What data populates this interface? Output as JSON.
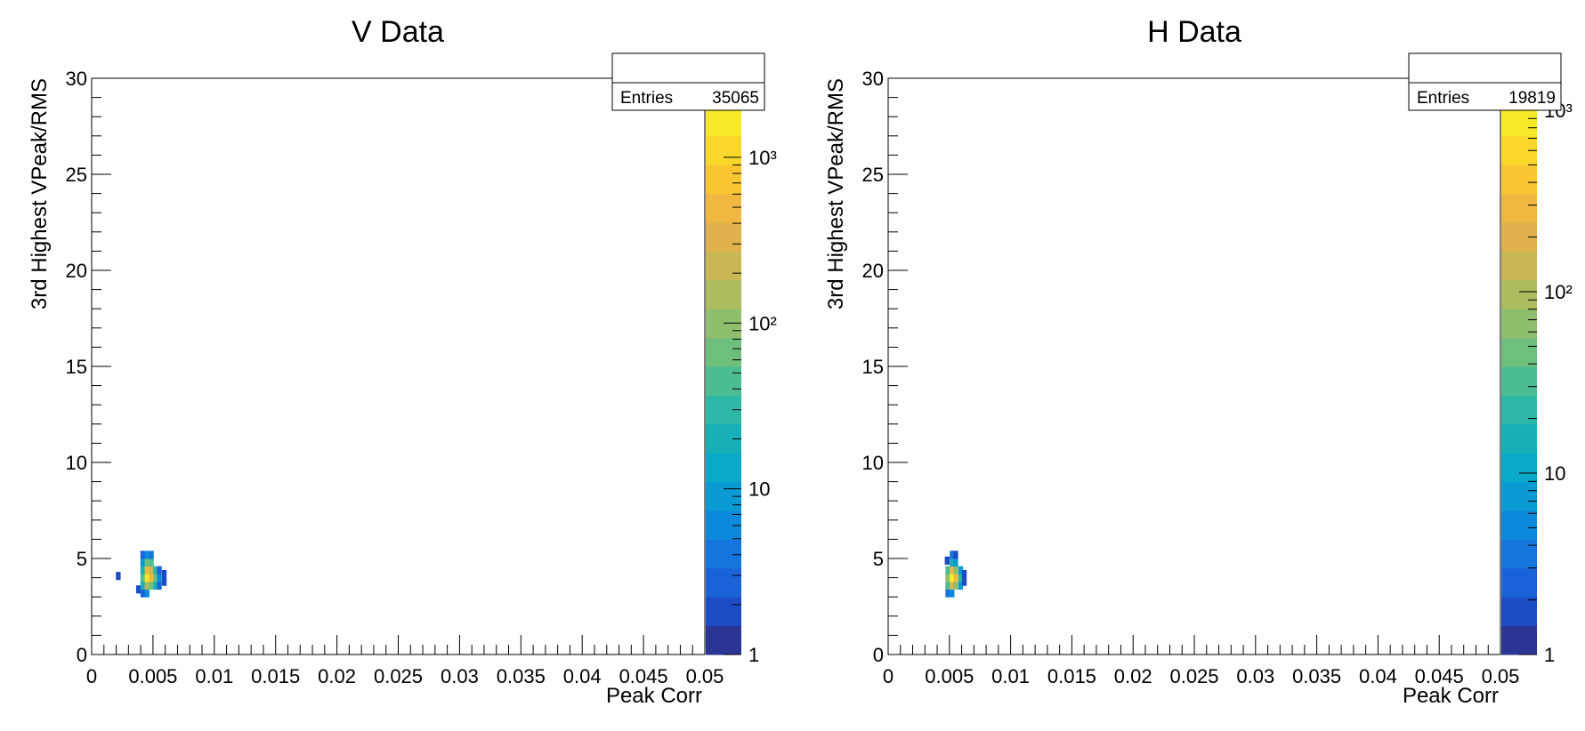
{
  "chart_data": [
    {
      "type": "heatmap",
      "title": "V Data",
      "xlabel": "Peak Corr",
      "ylabel": "3rd Highest VPeak/RMS",
      "xlim": [
        0,
        0.05
      ],
      "ylim": [
        0,
        30
      ],
      "x_ticks": [
        "0",
        "0.005",
        "0.01",
        "0.015",
        "0.02",
        "0.025",
        "0.03",
        "0.035",
        "0.04",
        "0.045",
        "0.05"
      ],
      "y_ticks": [
        "0",
        "5",
        "10",
        "15",
        "20",
        "25",
        "30"
      ],
      "color_scale": "log",
      "z_range": [
        1,
        3000
      ],
      "colorbar_labels": [
        "1",
        "10",
        "10²",
        "10³"
      ],
      "stats": {
        "label": "Entries",
        "value": "35065"
      },
      "bins": [
        {
          "x": 0.00215,
          "y": 4.1,
          "z": 2
        },
        {
          "x": 0.0038,
          "y": 3.4,
          "z": 2
        },
        {
          "x": 0.00415,
          "y": 3.2,
          "z": 3
        },
        {
          "x": 0.00415,
          "y": 3.6,
          "z": 20
        },
        {
          "x": 0.00415,
          "y": 4.0,
          "z": 40
        },
        {
          "x": 0.00415,
          "y": 4.4,
          "z": 20
        },
        {
          "x": 0.00415,
          "y": 4.8,
          "z": 8
        },
        {
          "x": 0.00415,
          "y": 5.2,
          "z": 3
        },
        {
          "x": 0.0045,
          "y": 3.2,
          "z": 6
        },
        {
          "x": 0.0045,
          "y": 3.6,
          "z": 150
        },
        {
          "x": 0.0045,
          "y": 4.0,
          "z": 2000
        },
        {
          "x": 0.0045,
          "y": 4.4,
          "z": 600
        },
        {
          "x": 0.0045,
          "y": 4.8,
          "z": 60
        },
        {
          "x": 0.0045,
          "y": 5.2,
          "z": 6
        },
        {
          "x": 0.00485,
          "y": 3.6,
          "z": 80
        },
        {
          "x": 0.00485,
          "y": 4.0,
          "z": 500
        },
        {
          "x": 0.00485,
          "y": 4.4,
          "z": 250
        },
        {
          "x": 0.00485,
          "y": 4.8,
          "z": 40
        },
        {
          "x": 0.00485,
          "y": 5.2,
          "z": 4
        },
        {
          "x": 0.0052,
          "y": 3.6,
          "z": 20
        },
        {
          "x": 0.0052,
          "y": 4.0,
          "z": 60
        },
        {
          "x": 0.0052,
          "y": 4.4,
          "z": 30
        },
        {
          "x": 0.0055,
          "y": 3.6,
          "z": 3
        },
        {
          "x": 0.0055,
          "y": 4.0,
          "z": 5
        },
        {
          "x": 0.0055,
          "y": 4.4,
          "z": 3
        },
        {
          "x": 0.0059,
          "y": 3.8,
          "z": 2
        },
        {
          "x": 0.0059,
          "y": 4.2,
          "z": 2
        }
      ]
    },
    {
      "type": "heatmap",
      "title": "H Data",
      "xlabel": "Peak Corr",
      "ylabel": "3rd Highest VPeak/RMS",
      "xlim": [
        0,
        0.05
      ],
      "ylim": [
        0,
        30
      ],
      "x_ticks": [
        "0",
        "0.005",
        "0.01",
        "0.015",
        "0.02",
        "0.025",
        "0.03",
        "0.035",
        "0.04",
        "0.045",
        "0.05"
      ],
      "y_ticks": [
        "0",
        "5",
        "10",
        "15",
        "20",
        "25",
        "30"
      ],
      "color_scale": "log",
      "z_range": [
        1,
        1500
      ],
      "colorbar_labels": [
        "1",
        "10",
        "10²",
        "10³"
      ],
      "stats": {
        "label": "Entries",
        "value": "19819"
      },
      "bins": [
        {
          "x": 0.0048,
          "y": 4.9,
          "z": 2
        },
        {
          "x": 0.00485,
          "y": 3.2,
          "z": 4
        },
        {
          "x": 0.00485,
          "y": 3.6,
          "z": 30
        },
        {
          "x": 0.00485,
          "y": 4.0,
          "z": 60
        },
        {
          "x": 0.00485,
          "y": 4.4,
          "z": 30
        },
        {
          "x": 0.0052,
          "y": 3.2,
          "z": 6
        },
        {
          "x": 0.0052,
          "y": 3.6,
          "z": 200
        },
        {
          "x": 0.0052,
          "y": 4.0,
          "z": 1300
        },
        {
          "x": 0.0052,
          "y": 4.4,
          "z": 300
        },
        {
          "x": 0.0052,
          "y": 4.8,
          "z": 15
        },
        {
          "x": 0.0052,
          "y": 5.2,
          "z": 3
        },
        {
          "x": 0.0055,
          "y": 3.6,
          "z": 60
        },
        {
          "x": 0.0055,
          "y": 4.0,
          "z": 250
        },
        {
          "x": 0.0055,
          "y": 4.4,
          "z": 80
        },
        {
          "x": 0.0055,
          "y": 4.8,
          "z": 8
        },
        {
          "x": 0.0055,
          "y": 5.2,
          "z": 2
        },
        {
          "x": 0.0059,
          "y": 3.6,
          "z": 8
        },
        {
          "x": 0.0059,
          "y": 4.0,
          "z": 20
        },
        {
          "x": 0.0059,
          "y": 4.4,
          "z": 8
        },
        {
          "x": 0.0062,
          "y": 3.8,
          "z": 2
        },
        {
          "x": 0.0062,
          "y": 4.2,
          "z": 2
        }
      ]
    }
  ]
}
